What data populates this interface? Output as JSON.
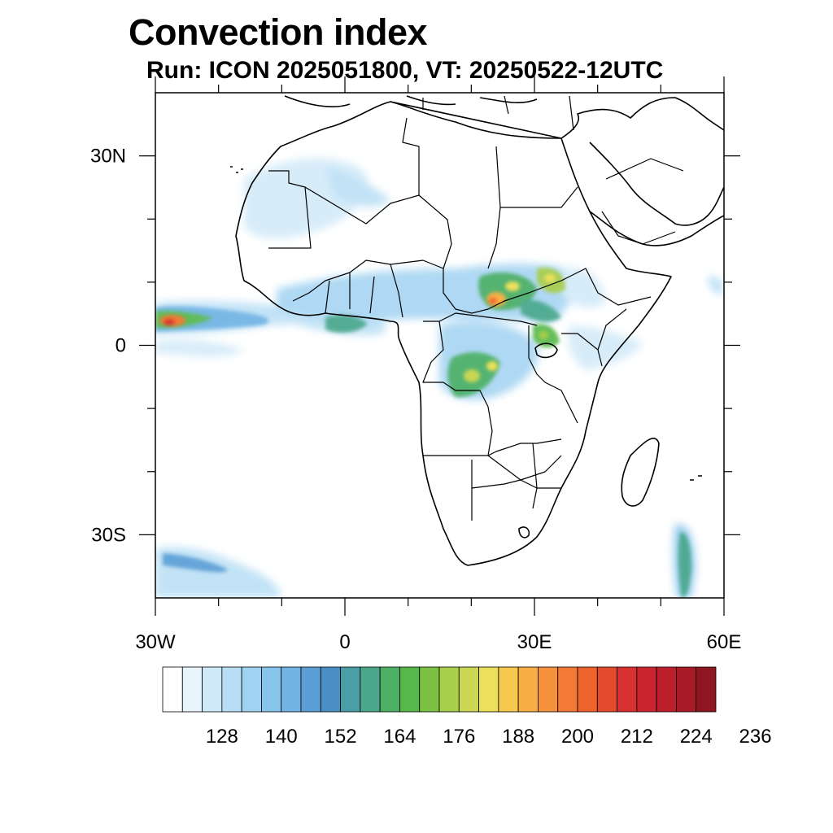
{
  "title": "Convection index",
  "subtitle": "Run: ICON 2025051800,  VT: 20250522-12UTC",
  "map": {
    "lon_range": [
      -30,
      60
    ],
    "lat_range": [
      -40,
      40
    ],
    "lat_ticks": [
      {
        "value": 30,
        "label": "30N"
      },
      {
        "value": 0,
        "label": "0"
      },
      {
        "value": -30,
        "label": "30S"
      }
    ],
    "lon_ticks": [
      {
        "value": -30,
        "label": "30W"
      },
      {
        "value": 0,
        "label": "0"
      },
      {
        "value": 30,
        "label": "30E"
      },
      {
        "value": 60,
        "label": "60E"
      }
    ],
    "minor_lon_ticks": [
      -20,
      -10,
      10,
      20,
      40,
      50
    ],
    "minor_lat_ticks": [
      20,
      10,
      -10,
      -20
    ]
  },
  "colorbar": {
    "colors": [
      "#ffffff",
      "#e8f4fc",
      "#d0e9f8",
      "#b8def5",
      "#a0d2f1",
      "#88c5ec",
      "#72b4e4",
      "#5c9fd6",
      "#4a8fc4",
      "#4a9ea6",
      "#4aa78a",
      "#4caf64",
      "#56b848",
      "#7cc144",
      "#a8ce4a",
      "#cad654",
      "#ece05a",
      "#f6c84e",
      "#f8ae44",
      "#f6923c",
      "#f27a34",
      "#ee622e",
      "#e24a2c",
      "#d83030",
      "#ca2430",
      "#bc1e2c",
      "#a81a26",
      "#8e1620"
    ],
    "labels": [
      "128",
      "140",
      "152",
      "164",
      "176",
      "188",
      "200",
      "212",
      "224",
      "236"
    ]
  }
}
